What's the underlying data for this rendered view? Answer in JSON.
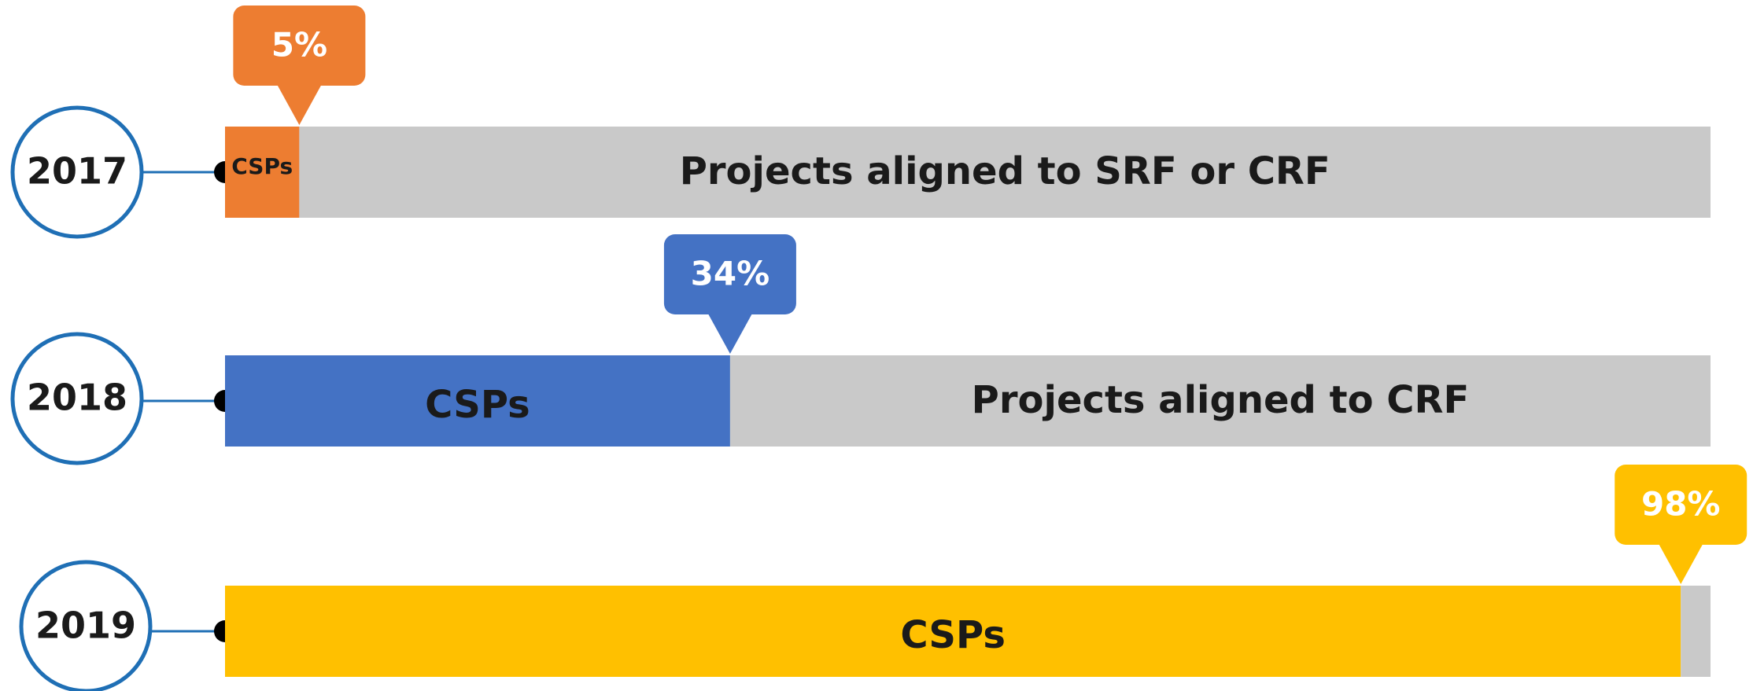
{
  "chart_data": {
    "type": "bar",
    "categories": [
      "2017",
      "2018",
      "2019"
    ],
    "xlim": [
      0,
      100
    ],
    "series": [
      {
        "name": "CSPs",
        "colors": [
          "#ED7D31",
          "#4472C4",
          "#FFC000"
        ],
        "values": [
          5,
          34,
          98
        ],
        "value_labels": [
          "5%",
          "34%",
          "98%"
        ]
      },
      {
        "color": "#C9C9C9",
        "values": [
          95,
          66,
          2
        ],
        "labels": [
          "Projects aligned to SRF or CRF",
          "Projects aligned to CRF",
          null
        ]
      }
    ],
    "circle_color": "#1F6FB5"
  }
}
